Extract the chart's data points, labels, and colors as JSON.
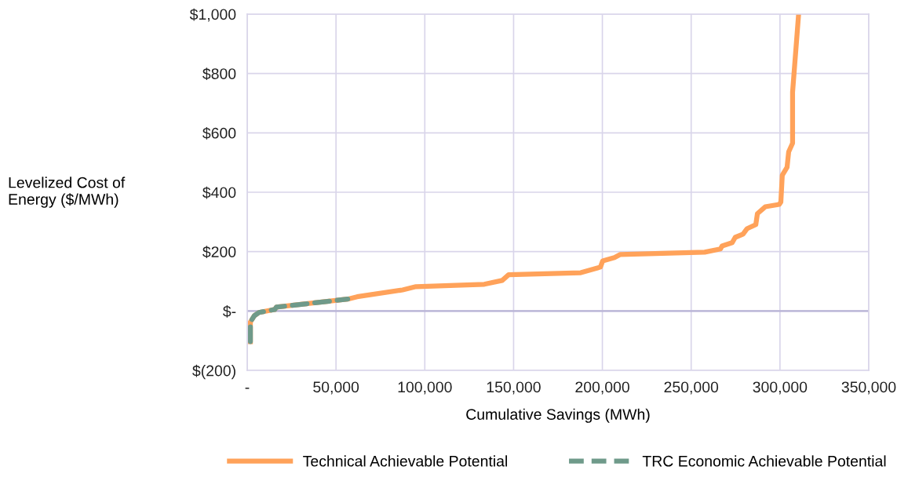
{
  "chart_data": {
    "type": "line",
    "xlabel": "Cumulative Savings (MWh)",
    "ylabel": "Levelized Cost of\nEnergy ($/MWh)",
    "xlim": [
      0,
      350000
    ],
    "xticks": [
      {
        "value": 0,
        "label": "-"
      },
      {
        "value": 50000,
        "label": "50,000"
      },
      {
        "value": 100000,
        "label": "100,000"
      },
      {
        "value": 150000,
        "label": "150,000"
      },
      {
        "value": 200000,
        "label": "200,000"
      },
      {
        "value": 250000,
        "label": "250,000"
      },
      {
        "value": 300000,
        "label": "300,000"
      },
      {
        "value": 350000,
        "label": "350,000"
      }
    ],
    "ylim": [
      -200,
      1000
    ],
    "yticks": [
      {
        "value": -200,
        "label": "$(200)"
      },
      {
        "value": 0,
        "label": "$-"
      },
      {
        "value": 200,
        "label": "$200"
      },
      {
        "value": 400,
        "label": "$400"
      },
      {
        "value": 600,
        "label": "$600"
      },
      {
        "value": 800,
        "label": "$800"
      },
      {
        "value": 1000,
        "label": "$1,000"
      }
    ],
    "grid": true,
    "legend": "bottom",
    "marker": "none",
    "series": [
      {
        "name": "Technical Achievable Potential",
        "color": "#ffa25a",
        "line_style": "solid",
        "x": [
          1800,
          1800,
          4000,
          6600,
          15500,
          16400,
          56600,
          61900,
          87500,
          95000,
          133500,
          143600,
          147200,
          187800,
          198900,
          200200,
          206800,
          209900,
          257600,
          266500,
          267400,
          273100,
          274800,
          279200,
          281400,
          286400,
          287300,
          291700,
          299600,
          300500,
          301300,
          304000,
          304900,
          307100,
          307100,
          310500
        ],
        "values": [
          -103,
          -37,
          -16,
          -5,
          5,
          13,
          40,
          48,
          71,
          82,
          90,
          103,
          122,
          129,
          148,
          169,
          180,
          190,
          198,
          209,
          219,
          230,
          248,
          259,
          277,
          291,
          328,
          351,
          359,
          367,
          457,
          484,
          536,
          565,
          737,
          1000
        ]
      },
      {
        "name": "TRC Economic Achievable Potential",
        "color": "#6f9a8a",
        "line_style": "dashed",
        "x": [
          1800,
          1800,
          4000,
          6600,
          15500,
          16400,
          56600
        ],
        "values": [
          -103,
          -37,
          -16,
          -5,
          5,
          13,
          40
        ]
      }
    ]
  }
}
